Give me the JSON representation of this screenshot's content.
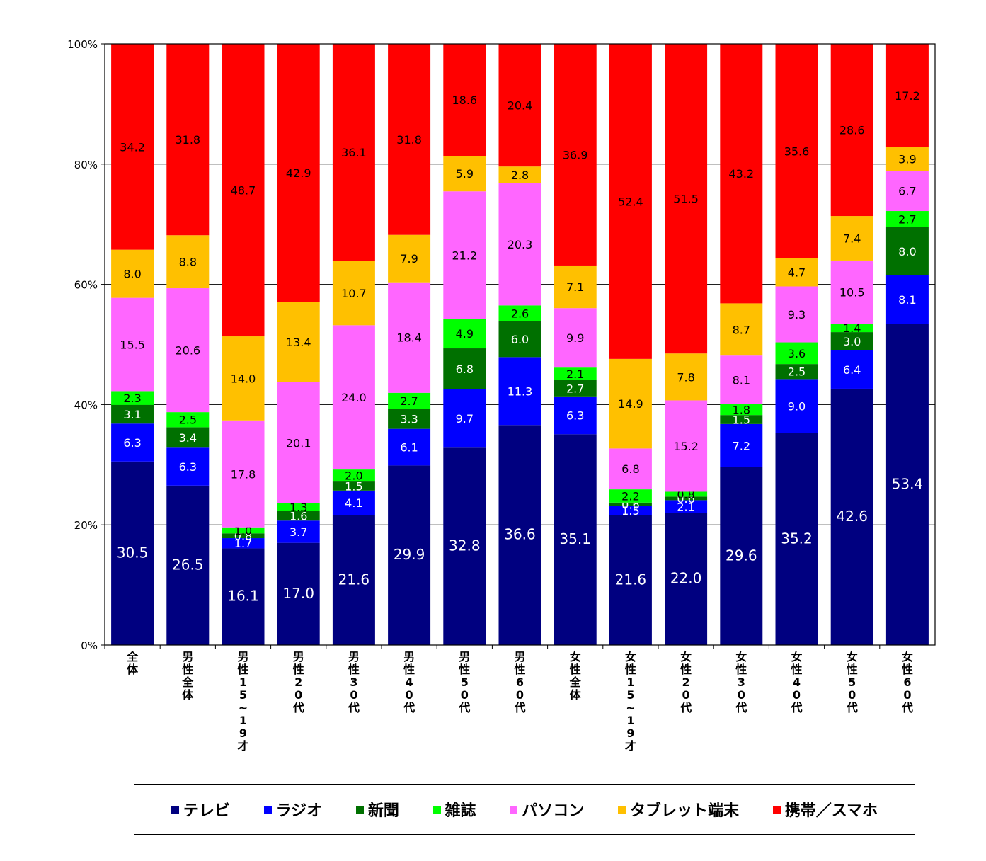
{
  "chart_data": {
    "type": "bar",
    "stacked": true,
    "categories": [
      "全体",
      "男性全体",
      "男性15~19才",
      "男性20代",
      "男性30代",
      "男性40代",
      "男性50代",
      "男性60代",
      "女性全体",
      "女性15~19才",
      "女性20代",
      "女性30代",
      "女性40代",
      "女性50代",
      "女性60代"
    ],
    "ylim": [
      0,
      100
    ],
    "yticks": [
      "0%",
      "20%",
      "40%",
      "60%",
      "80%",
      "100%"
    ],
    "grid": true,
    "legend_position": "bottom",
    "series": [
      {
        "name": "テレビ",
        "color": "#000080",
        "label_color": "#ffffff",
        "values": [
          30.5,
          26.5,
          16.1,
          17.0,
          21.6,
          29.9,
          32.8,
          36.6,
          35.1,
          21.6,
          22.0,
          29.6,
          35.2,
          42.6,
          53.4
        ]
      },
      {
        "name": "ラジオ",
        "color": "#0000ff",
        "label_color": "#ffffff",
        "values": [
          6.3,
          6.3,
          1.7,
          3.7,
          4.1,
          6.1,
          9.7,
          11.3,
          6.3,
          1.5,
          2.1,
          7.2,
          9.0,
          6.4,
          8.1
        ]
      },
      {
        "name": "新聞",
        "color": "#007000",
        "label_color": "#ffffff",
        "values": [
          3.1,
          3.4,
          0.8,
          1.6,
          1.5,
          3.3,
          6.8,
          6.0,
          2.7,
          0.6,
          0.6,
          1.5,
          2.5,
          3.0,
          8.0
        ]
      },
      {
        "name": "雑誌",
        "color": "#00ff00",
        "label_color": "#000000",
        "values": [
          2.3,
          2.5,
          1.0,
          1.3,
          2.0,
          2.7,
          4.9,
          2.6,
          2.1,
          2.2,
          0.8,
          1.8,
          3.6,
          1.4,
          2.7
        ]
      },
      {
        "name": "パソコン",
        "color": "#ff66ff",
        "label_color": "#000000",
        "values": [
          15.5,
          20.6,
          17.8,
          20.1,
          24.0,
          18.4,
          21.2,
          20.3,
          9.9,
          6.8,
          15.2,
          8.1,
          9.3,
          10.5,
          6.7
        ]
      },
      {
        "name": "タブレット端末",
        "color": "#ffc000",
        "label_color": "#000000",
        "values": [
          8.0,
          8.8,
          14.0,
          13.4,
          10.7,
          7.9,
          5.9,
          2.8,
          7.1,
          14.9,
          7.8,
          8.7,
          4.7,
          7.4,
          3.9
        ]
      },
      {
        "name": "携帯／スマホ",
        "color": "#ff0000",
        "label_color": "#000000",
        "values": [
          34.2,
          31.8,
          48.7,
          42.9,
          36.1,
          31.8,
          18.6,
          20.4,
          36.9,
          52.4,
          51.5,
          43.2,
          35.6,
          28.6,
          17.2
        ]
      }
    ]
  }
}
